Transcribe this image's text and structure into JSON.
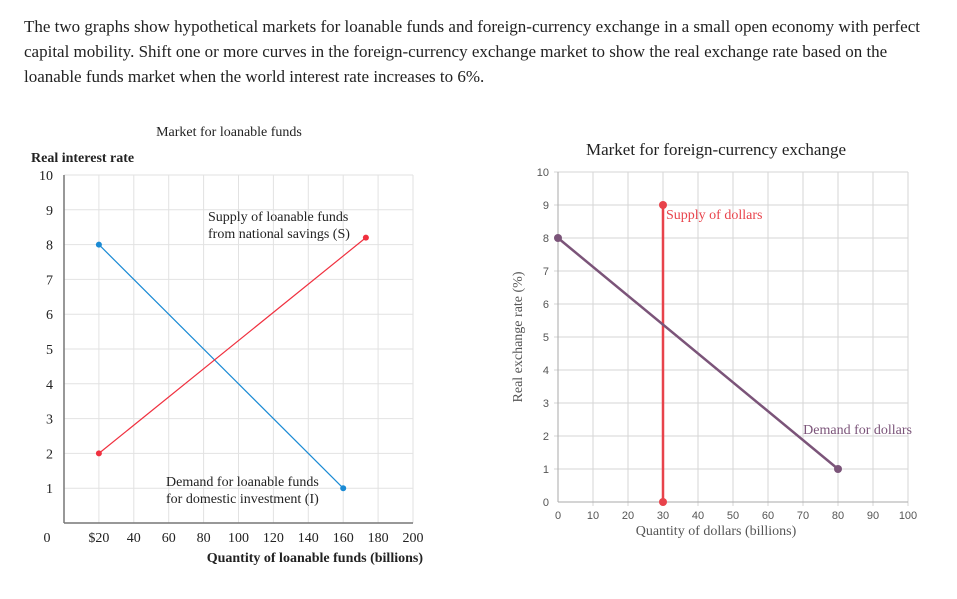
{
  "question": "The two graphs show hypothetical markets for loanable funds and foreign-currency exchange in a small open economy with perfect capital mobility. Shift one or more curves in the foreign-currency exchange market to show the real exchange rate based on the loanable funds market when the world interest rate increases to 6%.",
  "chart_data": [
    {
      "type": "line",
      "title": "Market for loanable funds",
      "ylabel": "Real interest rate",
      "xlabel": "Quantity of loanable funds (billions)",
      "xlim": [
        0,
        200
      ],
      "ylim": [
        0,
        10
      ],
      "x_tick_labels": [
        "0",
        "$20",
        "40",
        "60",
        "80",
        "100",
        "120",
        "140",
        "160",
        "180",
        "200"
      ],
      "y_tick_labels": [
        "1",
        "2",
        "3",
        "4",
        "5",
        "6",
        "7",
        "8",
        "9",
        "10"
      ],
      "grid": true,
      "series": [
        {
          "name": "Demand for loanable funds for domestic investment (I)",
          "label_lines": [
            "Demand for loanable funds",
            "for domestic investment (I)"
          ],
          "color": "#1a8ad4",
          "points": [
            [
              20,
              8
            ],
            [
              160,
              1
            ]
          ]
        },
        {
          "name": "Supply of loanable funds from national savings (S)",
          "label_lines": [
            "Supply of loanable funds",
            "from national savings (S)"
          ],
          "color": "#f0303f",
          "points": [
            [
              20,
              2
            ],
            [
              173,
              8.2
            ]
          ]
        }
      ]
    },
    {
      "type": "line",
      "title": "Market for foreign-currency exchange",
      "ylabel": "Real exchange rate (%)",
      "xlabel": "Quantity of dollars (billions)",
      "xlim": [
        0,
        100
      ],
      "ylim": [
        0,
        10
      ],
      "x_tick_labels": [
        "0",
        "10",
        "20",
        "30",
        "40",
        "50",
        "60",
        "70",
        "80",
        "90",
        "100"
      ],
      "y_tick_labels": [
        "0",
        "1",
        "2",
        "3",
        "4",
        "5",
        "6",
        "7",
        "8",
        "9",
        "10"
      ],
      "grid": true,
      "series": [
        {
          "name": "Supply of dollars",
          "color": "#e8434b",
          "points": [
            [
              30,
              0
            ],
            [
              30,
              9
            ]
          ]
        },
        {
          "name": "Demand for dollars",
          "color": "#7b5479",
          "points": [
            [
              0,
              8
            ],
            [
              80,
              1
            ]
          ]
        }
      ]
    }
  ]
}
